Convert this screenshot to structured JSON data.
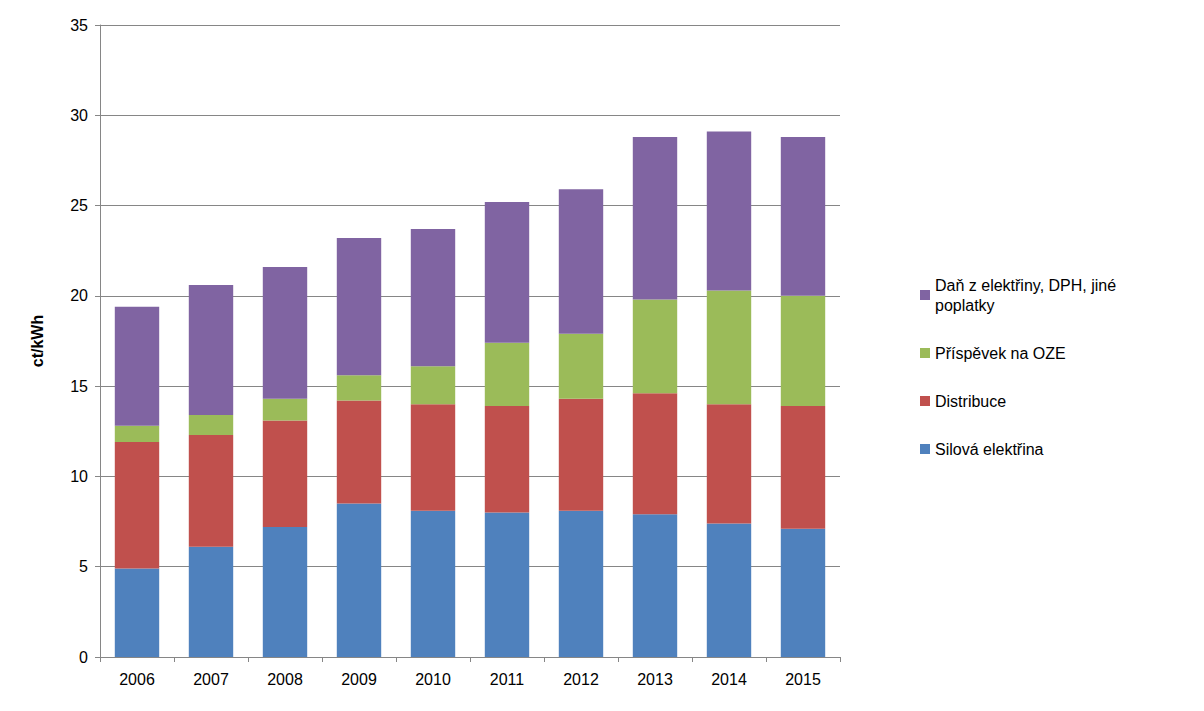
{
  "chart_data": {
    "type": "bar",
    "stacked": true,
    "y_label": "ct/kWh",
    "categories": [
      "2006",
      "2007",
      "2008",
      "2009",
      "2010",
      "2011",
      "2012",
      "2013",
      "2014",
      "2015"
    ],
    "series": [
      {
        "name": "Silová elektřina",
        "color": "#4f81bd",
        "values": [
          4.9,
          6.1,
          7.2,
          8.5,
          8.1,
          8.0,
          8.1,
          7.9,
          7.4,
          7.1
        ]
      },
      {
        "name": "Distribuce",
        "color": "#c0504d",
        "values": [
          7.0,
          6.2,
          5.9,
          5.7,
          5.9,
          5.9,
          6.2,
          6.7,
          6.6,
          6.8
        ]
      },
      {
        "name": "Příspěvek na OZE",
        "color": "#9bbb59",
        "values": [
          0.9,
          1.1,
          1.2,
          1.4,
          2.1,
          3.5,
          3.6,
          5.2,
          6.3,
          6.1
        ]
      },
      {
        "name": "Daň z elektřiny, DPH, jiné poplatky",
        "color": "#8064a2",
        "values": [
          6.6,
          7.2,
          7.3,
          7.6,
          7.6,
          7.8,
          8.0,
          9.0,
          8.8,
          8.8
        ]
      }
    ],
    "ylim": [
      0,
      35
    ],
    "yticks": [
      0,
      5,
      10,
      15,
      20,
      25,
      30,
      35
    ],
    "grid": true,
    "legend": "right"
  }
}
